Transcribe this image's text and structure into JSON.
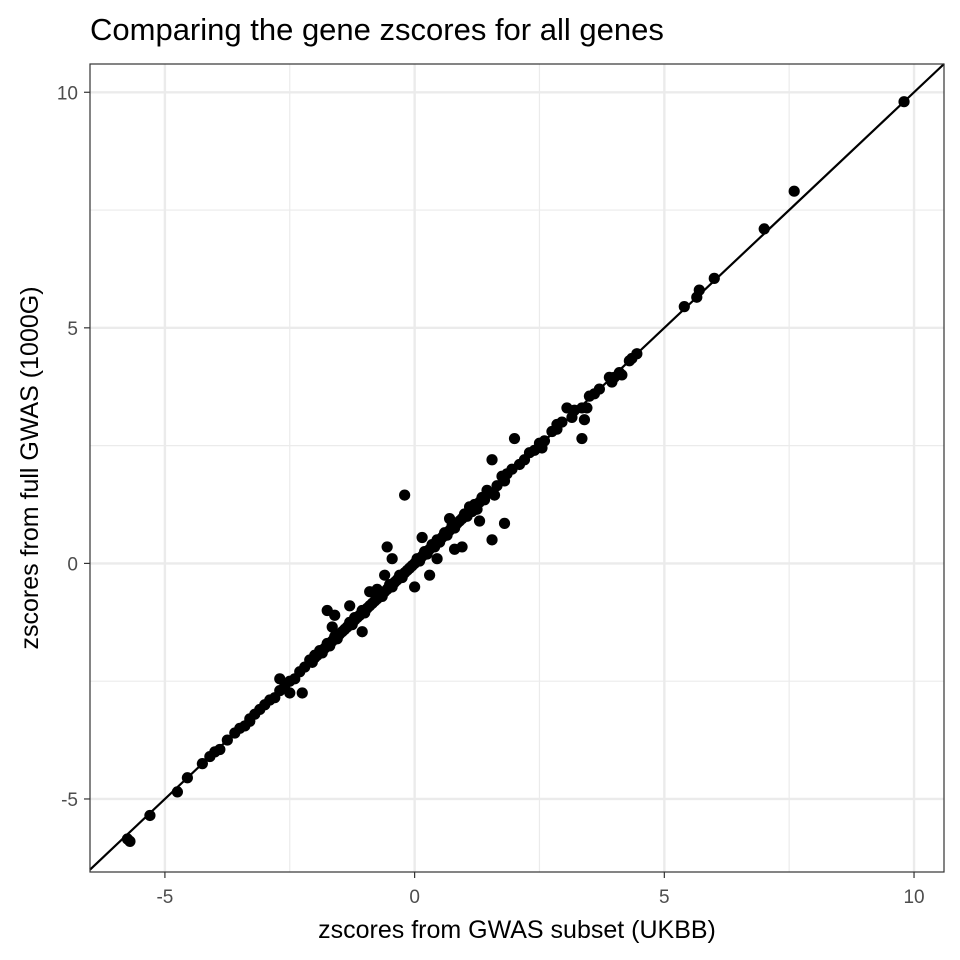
{
  "chart_data": {
    "type": "scatter",
    "title": "Comparing the gene zscores for all genes",
    "xlabel": "zscores from GWAS subset (UKBB)",
    "ylabel": "zscores from full GWAS (1000G)",
    "xlim": [
      -6.5,
      10.6
    ],
    "ylim": [
      -6.55,
      10.6
    ],
    "x_ticks": [
      -5,
      0,
      5,
      10
    ],
    "x_tick_labels": [
      "-5",
      "0",
      "5",
      "10"
    ],
    "y_ticks": [
      -5,
      0,
      5,
      10
    ],
    "y_tick_labels": [
      "-5",
      "0",
      "5",
      "10"
    ],
    "grid": true,
    "legend": "none",
    "reference_line": {
      "slope": 1,
      "intercept": 0
    },
    "point_color": "#000000",
    "line_color": "#000000",
    "grid_color": "#ebebeb",
    "points": [
      {
        "x": 9.8,
        "y": 9.8
      },
      {
        "x": 7.6,
        "y": 7.9
      },
      {
        "x": 7.0,
        "y": 7.1
      },
      {
        "x": 6.0,
        "y": 6.05
      },
      {
        "x": 5.7,
        "y": 5.8
      },
      {
        "x": 5.65,
        "y": 5.65
      },
      {
        "x": 5.4,
        "y": 5.45
      },
      {
        "x": 4.45,
        "y": 4.45
      },
      {
        "x": 4.35,
        "y": 4.35
      },
      {
        "x": 4.3,
        "y": 4.3
      },
      {
        "x": 4.15,
        "y": 4.0
      },
      {
        "x": 4.1,
        "y": 4.05
      },
      {
        "x": 4.0,
        "y": 3.95
      },
      {
        "x": 3.95,
        "y": 3.85
      },
      {
        "x": 3.9,
        "y": 3.95
      },
      {
        "x": 3.7,
        "y": 3.7
      },
      {
        "x": 3.6,
        "y": 3.6
      },
      {
        "x": 3.5,
        "y": 3.55
      },
      {
        "x": 3.45,
        "y": 3.3
      },
      {
        "x": 3.35,
        "y": 3.3
      },
      {
        "x": 3.4,
        "y": 3.05
      },
      {
        "x": 3.35,
        "y": 2.65
      },
      {
        "x": 3.2,
        "y": 3.25
      },
      {
        "x": 3.15,
        "y": 3.1
      },
      {
        "x": 3.05,
        "y": 3.3
      },
      {
        "x": 2.95,
        "y": 3.0
      },
      {
        "x": 2.85,
        "y": 2.85
      },
      {
        "x": 2.75,
        "y": 2.8
      },
      {
        "x": 2.6,
        "y": 2.6
      },
      {
        "x": 2.5,
        "y": 2.55
      },
      {
        "x": 2.4,
        "y": 2.4
      },
      {
        "x": 2.3,
        "y": 2.35
      },
      {
        "x": 2.2,
        "y": 2.2
      },
      {
        "x": 2.1,
        "y": 2.1
      },
      {
        "x": 2.0,
        "y": 2.65
      },
      {
        "x": 1.95,
        "y": 2.0
      },
      {
        "x": 1.85,
        "y": 1.9
      },
      {
        "x": 1.8,
        "y": 1.75
      },
      {
        "x": 1.75,
        "y": 1.85
      },
      {
        "x": 1.65,
        "y": 1.65
      },
      {
        "x": 1.55,
        "y": 2.2
      },
      {
        "x": 1.5,
        "y": 1.5
      },
      {
        "x": 1.45,
        "y": 1.55
      },
      {
        "x": 1.4,
        "y": 1.35
      },
      {
        "x": 1.35,
        "y": 1.4
      },
      {
        "x": 1.3,
        "y": 1.3
      },
      {
        "x": 1.25,
        "y": 1.15
      },
      {
        "x": 1.2,
        "y": 1.25
      },
      {
        "x": 1.15,
        "y": 1.1
      },
      {
        "x": 1.1,
        "y": 1.2
      },
      {
        "x": 1.05,
        "y": 1.0
      },
      {
        "x": 1.0,
        "y": 1.05
      },
      {
        "x": 0.95,
        "y": 0.95
      },
      {
        "x": 0.9,
        "y": 0.9
      },
      {
        "x": 0.85,
        "y": 0.85
      },
      {
        "x": 0.8,
        "y": 0.75
      },
      {
        "x": 0.75,
        "y": 0.8
      },
      {
        "x": 0.7,
        "y": 0.7
      },
      {
        "x": 0.65,
        "y": 0.6
      },
      {
        "x": 0.6,
        "y": 0.65
      },
      {
        "x": 0.55,
        "y": 0.55
      },
      {
        "x": 0.5,
        "y": 0.45
      },
      {
        "x": 0.45,
        "y": 0.5
      },
      {
        "x": 0.4,
        "y": 0.35
      },
      {
        "x": 0.35,
        "y": 0.4
      },
      {
        "x": 0.3,
        "y": 0.3
      },
      {
        "x": 0.25,
        "y": 0.2
      },
      {
        "x": 0.2,
        "y": 0.25
      },
      {
        "x": 0.15,
        "y": 0.15
      },
      {
        "x": 0.1,
        "y": 0.05
      },
      {
        "x": 0.05,
        "y": 0.1
      },
      {
        "x": 0.0,
        "y": 0.0
      },
      {
        "x": -0.05,
        "y": -0.05
      },
      {
        "x": -0.1,
        "y": -0.1
      },
      {
        "x": -0.15,
        "y": -0.15
      },
      {
        "x": -0.2,
        "y": -0.2
      },
      {
        "x": -0.25,
        "y": -0.3
      },
      {
        "x": -0.3,
        "y": -0.25
      },
      {
        "x": -0.35,
        "y": -0.35
      },
      {
        "x": -0.4,
        "y": -0.4
      },
      {
        "x": -0.45,
        "y": -0.5
      },
      {
        "x": -0.5,
        "y": -0.45
      },
      {
        "x": -0.55,
        "y": -0.55
      },
      {
        "x": -0.6,
        "y": -0.6
      },
      {
        "x": -0.65,
        "y": -0.7
      },
      {
        "x": -0.7,
        "y": -0.65
      },
      {
        "x": -0.75,
        "y": -0.75
      },
      {
        "x": -0.8,
        "y": -0.8
      },
      {
        "x": -0.85,
        "y": -0.85
      },
      {
        "x": -0.9,
        "y": -0.9
      },
      {
        "x": -0.95,
        "y": -0.95
      },
      {
        "x": -1.0,
        "y": -1.05
      },
      {
        "x": -1.05,
        "y": -1.0
      },
      {
        "x": -1.1,
        "y": -1.1
      },
      {
        "x": -1.15,
        "y": -1.15
      },
      {
        "x": -1.2,
        "y": -1.2
      },
      {
        "x": -1.25,
        "y": -1.3
      },
      {
        "x": -1.3,
        "y": -1.25
      },
      {
        "x": -1.35,
        "y": -1.35
      },
      {
        "x": -1.4,
        "y": -1.4
      },
      {
        "x": -1.45,
        "y": -1.45
      },
      {
        "x": -1.5,
        "y": -1.5
      },
      {
        "x": -1.55,
        "y": -1.6
      },
      {
        "x": -1.6,
        "y": -1.55
      },
      {
        "x": -1.65,
        "y": -1.65
      },
      {
        "x": -1.7,
        "y": -1.75
      },
      {
        "x": -1.75,
        "y": -1.7
      },
      {
        "x": -1.8,
        "y": -1.8
      },
      {
        "x": -1.85,
        "y": -1.9
      },
      {
        "x": -1.9,
        "y": -1.85
      },
      {
        "x": -1.95,
        "y": -1.95
      },
      {
        "x": -2.0,
        "y": -2.0
      },
      {
        "x": -2.05,
        "y": -2.1
      },
      {
        "x": -2.1,
        "y": -2.05
      },
      {
        "x": -2.2,
        "y": -2.2
      },
      {
        "x": -2.3,
        "y": -2.3
      },
      {
        "x": -2.4,
        "y": -2.45
      },
      {
        "x": -2.5,
        "y": -2.5
      },
      {
        "x": -2.6,
        "y": -2.6
      },
      {
        "x": -2.7,
        "y": -2.7
      },
      {
        "x": -2.8,
        "y": -2.85
      },
      {
        "x": -2.9,
        "y": -2.9
      },
      {
        "x": -3.0,
        "y": -3.0
      },
      {
        "x": -3.1,
        "y": -3.1
      },
      {
        "x": -3.2,
        "y": -3.2
      },
      {
        "x": -3.3,
        "y": -3.3
      },
      {
        "x": -3.4,
        "y": -3.45
      },
      {
        "x": -3.5,
        "y": -3.5
      },
      {
        "x": -3.6,
        "y": -3.6
      },
      {
        "x": -3.75,
        "y": -3.75
      },
      {
        "x": -3.9,
        "y": -3.95
      },
      {
        "x": -4.0,
        "y": -4.0
      },
      {
        "x": -4.1,
        "y": -4.1
      },
      {
        "x": -4.25,
        "y": -4.25
      },
      {
        "x": -4.55,
        "y": -4.55
      },
      {
        "x": -4.75,
        "y": -4.85
      },
      {
        "x": -5.3,
        "y": -5.35
      },
      {
        "x": -5.7,
        "y": -5.9
      },
      {
        "x": -5.75,
        "y": -5.85
      },
      {
        "x": -0.2,
        "y": 1.45
      },
      {
        "x": 1.8,
        "y": 0.85
      },
      {
        "x": 1.55,
        "y": 0.5
      },
      {
        "x": 1.3,
        "y": 0.9
      },
      {
        "x": 0.8,
        "y": 0.3
      },
      {
        "x": 0.95,
        "y": 0.35
      },
      {
        "x": 0.3,
        "y": -0.25
      },
      {
        "x": 0.0,
        "y": -0.5
      },
      {
        "x": -0.55,
        "y": 0.35
      },
      {
        "x": -0.45,
        "y": 0.1
      },
      {
        "x": -0.6,
        "y": -0.25
      },
      {
        "x": -0.9,
        "y": -0.6
      },
      {
        "x": -1.3,
        "y": -0.9
      },
      {
        "x": -1.75,
        "y": -1.0
      },
      {
        "x": -1.6,
        "y": -1.1
      },
      {
        "x": -1.05,
        "y": -1.45
      },
      {
        "x": -2.25,
        "y": -2.75
      },
      {
        "x": -2.5,
        "y": -2.75
      },
      {
        "x": -2.7,
        "y": -2.45
      },
      {
        "x": -1.65,
        "y": -1.35
      },
      {
        "x": -3.3,
        "y": -3.35
      },
      {
        "x": -2.0,
        "y": -1.95
      },
      {
        "x": -1.2,
        "y": -1.15
      },
      {
        "x": -0.75,
        "y": -0.55
      },
      {
        "x": 0.15,
        "y": 0.55
      },
      {
        "x": 0.45,
        "y": 0.1
      },
      {
        "x": 0.7,
        "y": 0.95
      },
      {
        "x": 1.6,
        "y": 1.45
      },
      {
        "x": 2.55,
        "y": 2.45
      },
      {
        "x": 2.85,
        "y": 2.95
      }
    ]
  }
}
